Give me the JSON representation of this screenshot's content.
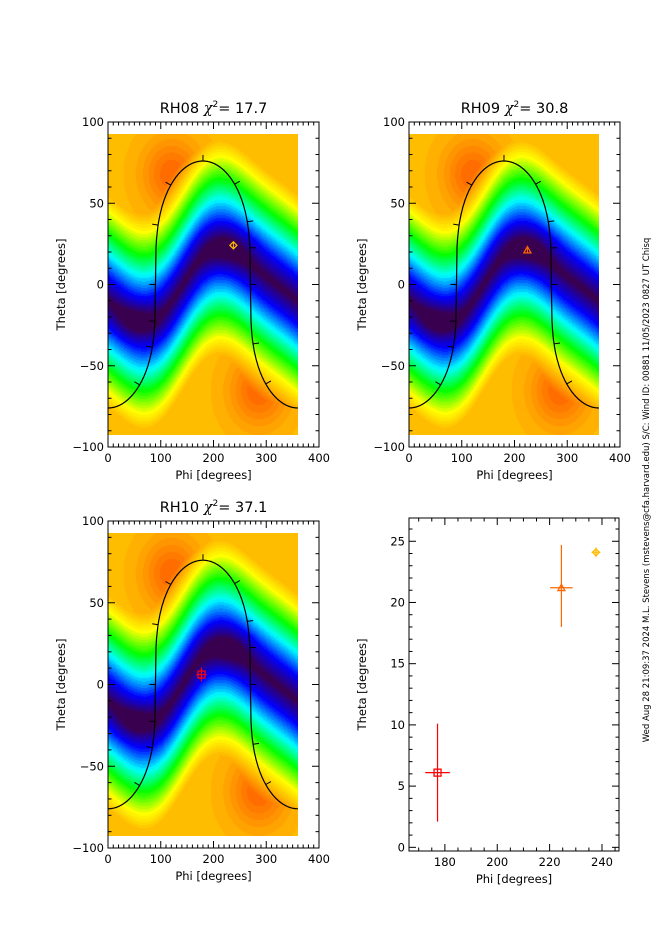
{
  "side_text": "Wed Aug 28 21:09:37 2024   M.L. Stevens (mstevens@cfa.harvard.edu)   S/C: Wind ID: 00881 11/05/2023  0827 UT Chisq",
  "chart_data": [
    {
      "type": "heatmap",
      "title": {
        "name": "RH08",
        "chi_symbol": "χ",
        "sup": "2",
        "eq": "= 17.7"
      },
      "xlabel": "Phi [degrees]",
      "ylabel": "Theta [degrees]",
      "xlim": [
        0,
        400
      ],
      "ylim": [
        -100,
        100
      ],
      "xticks": [
        "0",
        "100",
        "200",
        "300",
        "400"
      ],
      "yticks": [
        "-100",
        "-50",
        "0",
        "50",
        "100"
      ],
      "colormap": [
        "#3a0050",
        "#0000ff",
        "#00ffff",
        "#00ff00",
        "#ffff00",
        "#ffb000",
        "#ff6000"
      ],
      "marker": {
        "symbol": "diamond",
        "phi": 237.7,
        "theta": 24.1,
        "color": "#ffbb00"
      }
    },
    {
      "type": "heatmap",
      "title": {
        "name": "RH09",
        "chi_symbol": "χ",
        "sup": "2",
        "eq": "= 30.8"
      },
      "xlabel": "Phi [degrees]",
      "ylabel": "Theta [degrees]",
      "xlim": [
        0,
        400
      ],
      "ylim": [
        -100,
        100
      ],
      "xticks": [
        "0",
        "100",
        "200",
        "300",
        "400"
      ],
      "yticks": [
        "-100",
        "-50",
        "0",
        "50",
        "100"
      ],
      "colormap": [
        "#3a0050",
        "#0000ff",
        "#00ffff",
        "#00ff00",
        "#ffff00",
        "#ffb000",
        "#ff6000"
      ],
      "marker": {
        "symbol": "triangle",
        "phi": 224.5,
        "theta": 21.2,
        "color": "#ff6600"
      }
    },
    {
      "type": "heatmap",
      "title": {
        "name": "RH10",
        "chi_symbol": "χ",
        "sup": "2",
        "eq": "= 37.1"
      },
      "xlabel": "Phi [degrees]",
      "ylabel": "Theta [degrees]",
      "xlim": [
        0,
        400
      ],
      "ylim": [
        -100,
        100
      ],
      "xticks": [
        "0",
        "100",
        "200",
        "300",
        "400"
      ],
      "yticks": [
        "-100",
        "-50",
        "0",
        "50",
        "100"
      ],
      "colormap": [
        "#3a0050",
        "#0000ff",
        "#00ffff",
        "#00ff00",
        "#ffff00",
        "#ffb000",
        "#ff6000"
      ],
      "marker": {
        "symbol": "square",
        "phi": 177.2,
        "theta": 6.1,
        "color": "#ff0000"
      }
    },
    {
      "type": "scatter",
      "xlabel": "Phi [degrees]",
      "ylabel": "Theta [degrees]",
      "xlim": [
        166.3,
        246.5
      ],
      "ylim": [
        -0.3,
        26.9
      ],
      "xticks": [
        "180",
        "200",
        "220",
        "240"
      ],
      "yticks": [
        "0",
        "5",
        "10",
        "15",
        "20",
        "25"
      ],
      "points": [
        {
          "symbol": "square",
          "phi": 177.2,
          "theta": 6.1,
          "phi_err": 4.7,
          "theta_lo": 2.1,
          "theta_hi": 10.1,
          "color": "#ff0000"
        },
        {
          "symbol": "triangle",
          "phi": 224.5,
          "theta": 21.2,
          "phi_err": 4.3,
          "theta_lo": 18.0,
          "theta_hi": 24.7,
          "color": "#ff6600"
        },
        {
          "symbol": "diamond",
          "phi": 237.7,
          "theta": 24.1,
          "phi_err": 1.7,
          "theta_lo": 23.7,
          "theta_hi": 24.5,
          "color": "#ffbb00"
        }
      ]
    }
  ]
}
